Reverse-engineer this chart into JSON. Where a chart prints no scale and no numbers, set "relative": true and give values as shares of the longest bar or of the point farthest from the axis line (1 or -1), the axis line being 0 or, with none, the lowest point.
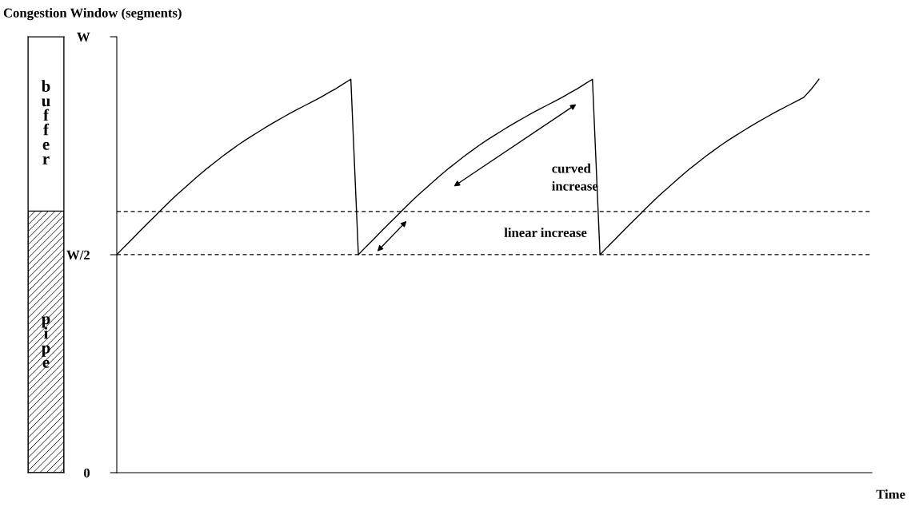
{
  "chart_data": [
    {
      "type": "bar",
      "stacked": true,
      "relative": true,
      "categories": [
        null
      ],
      "tick_labels": false,
      "series": [
        {
          "name": "pipe",
          "color": "#000000",
          "values": [
            0.6
          ]
        },
        {
          "name": "buffer",
          "color": "#ffffff",
          "values": [
            0.4
          ]
        }
      ]
    },
    {
      "type": "line",
      "relative": true,
      "ylabel": "Congestion Window (segments)",
      "xlabel": "Time",
      "tick_labels": false,
      "grid": false,
      "legend": false,
      "categories": [
        null,
        null,
        null,
        null,
        null,
        null,
        null,
        null,
        null,
        null,
        null,
        null,
        null,
        null,
        null,
        null,
        null,
        null,
        null,
        null,
        null,
        null,
        null,
        null,
        null,
        null,
        null,
        null,
        null,
        null,
        null,
        null,
        null,
        null,
        null,
        null,
        null,
        null,
        null,
        null,
        null,
        null,
        null,
        null,
        null,
        null,
        null,
        null,
        null,
        null,
        null,
        null,
        null,
        null,
        null,
        null,
        null,
        null,
        null,
        null,
        null,
        null,
        null,
        null,
        null,
        null,
        null,
        null,
        null,
        null,
        null,
        null,
        null,
        null,
        null,
        null,
        null,
        null,
        null,
        null,
        null,
        null,
        null,
        null,
        null,
        null,
        null,
        null,
        null,
        null,
        null,
        null,
        null,
        null,
        null,
        null,
        null,
        null,
        null,
        null,
        null
      ],
      "series": [
        {
          "color": "#000000",
          "values": [
            0.554,
            0.574,
            0.593,
            0.613,
            0.632,
            0.651,
            0.67,
            0.689,
            0.707,
            0.724,
            0.741,
            0.758,
            0.774,
            0.789,
            0.804,
            0.818,
            0.832,
            0.845,
            0.857,
            0.869,
            0.881,
            0.892,
            0.903,
            0.914,
            0.924,
            0.934,
            0.944,
            0.954,
            0.965,
            0.976,
            0.988,
            1,
            0.554,
            0.574,
            0.593,
            0.613,
            0.632,
            0.651,
            0.67,
            0.689,
            0.707,
            0.724,
            0.741,
            0.758,
            0.774,
            0.789,
            0.804,
            0.818,
            0.832,
            0.845,
            0.857,
            0.869,
            0.881,
            0.892,
            0.903,
            0.914,
            0.924,
            0.934,
            0.944,
            0.954,
            0.965,
            0.976,
            0.988,
            1,
            0.554,
            0.574,
            0.593,
            0.613,
            0.632,
            0.651,
            0.67,
            0.689,
            0.707,
            0.724,
            0.741,
            0.758,
            0.774,
            0.789,
            0.804,
            0.818,
            0.832,
            0.845,
            0.857,
            0.869,
            0.881,
            0.892,
            0.903,
            0.914,
            0.924,
            0.934,
            0.944,
            0.954,
            0.975,
            1,
            null,
            null,
            null,
            null,
            null,
            null,
            null
          ]
        }
      ],
      "ref_lines": [
        {
          "axis": "y",
          "value": 0.664,
          "color": "#000000",
          "line_style": "dashed"
        },
        {
          "axis": "y",
          "value": 0.554,
          "color": "#000000",
          "line_style": "dashed"
        }
      ],
      "annotations": [
        "curved increase",
        "linear increase",
        "W",
        "W/2",
        "0"
      ]
    }
  ]
}
